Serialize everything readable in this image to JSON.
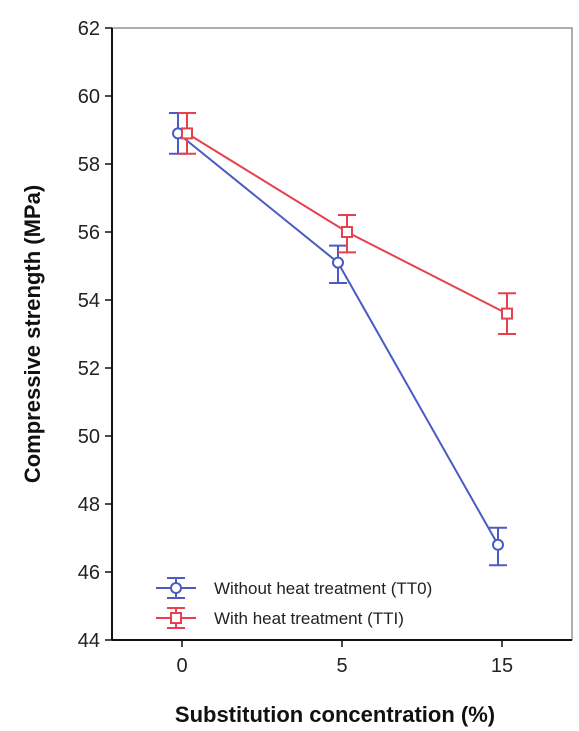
{
  "chart_data": {
    "type": "line",
    "xlabel": "Substitution concentration (%)",
    "ylabel": "Compressive strength (MPa)",
    "categories": [
      "0",
      "5",
      "15"
    ],
    "ylim": [
      44,
      62
    ],
    "yticks": [
      "44",
      "46",
      "48",
      "50",
      "52",
      "54",
      "56",
      "58",
      "60",
      "62"
    ],
    "grid": false,
    "legend_position": "bottom-left",
    "series": [
      {
        "name": "Without  heat treatment  (TT0)",
        "color": "#4a5bc4",
        "marker": "circle",
        "values": [
          58.9,
          55.1,
          46.8
        ],
        "error_low": [
          58.3,
          54.5,
          46.2
        ],
        "error_high": [
          59.5,
          55.6,
          47.3
        ]
      },
      {
        "name": "With heat treatment  (TTI)",
        "color": "#e8414e",
        "marker": "square",
        "values": [
          58.9,
          56.0,
          53.6
        ],
        "error_low": [
          58.3,
          55.4,
          53.0
        ],
        "error_high": [
          59.5,
          56.5,
          54.2
        ]
      }
    ]
  }
}
